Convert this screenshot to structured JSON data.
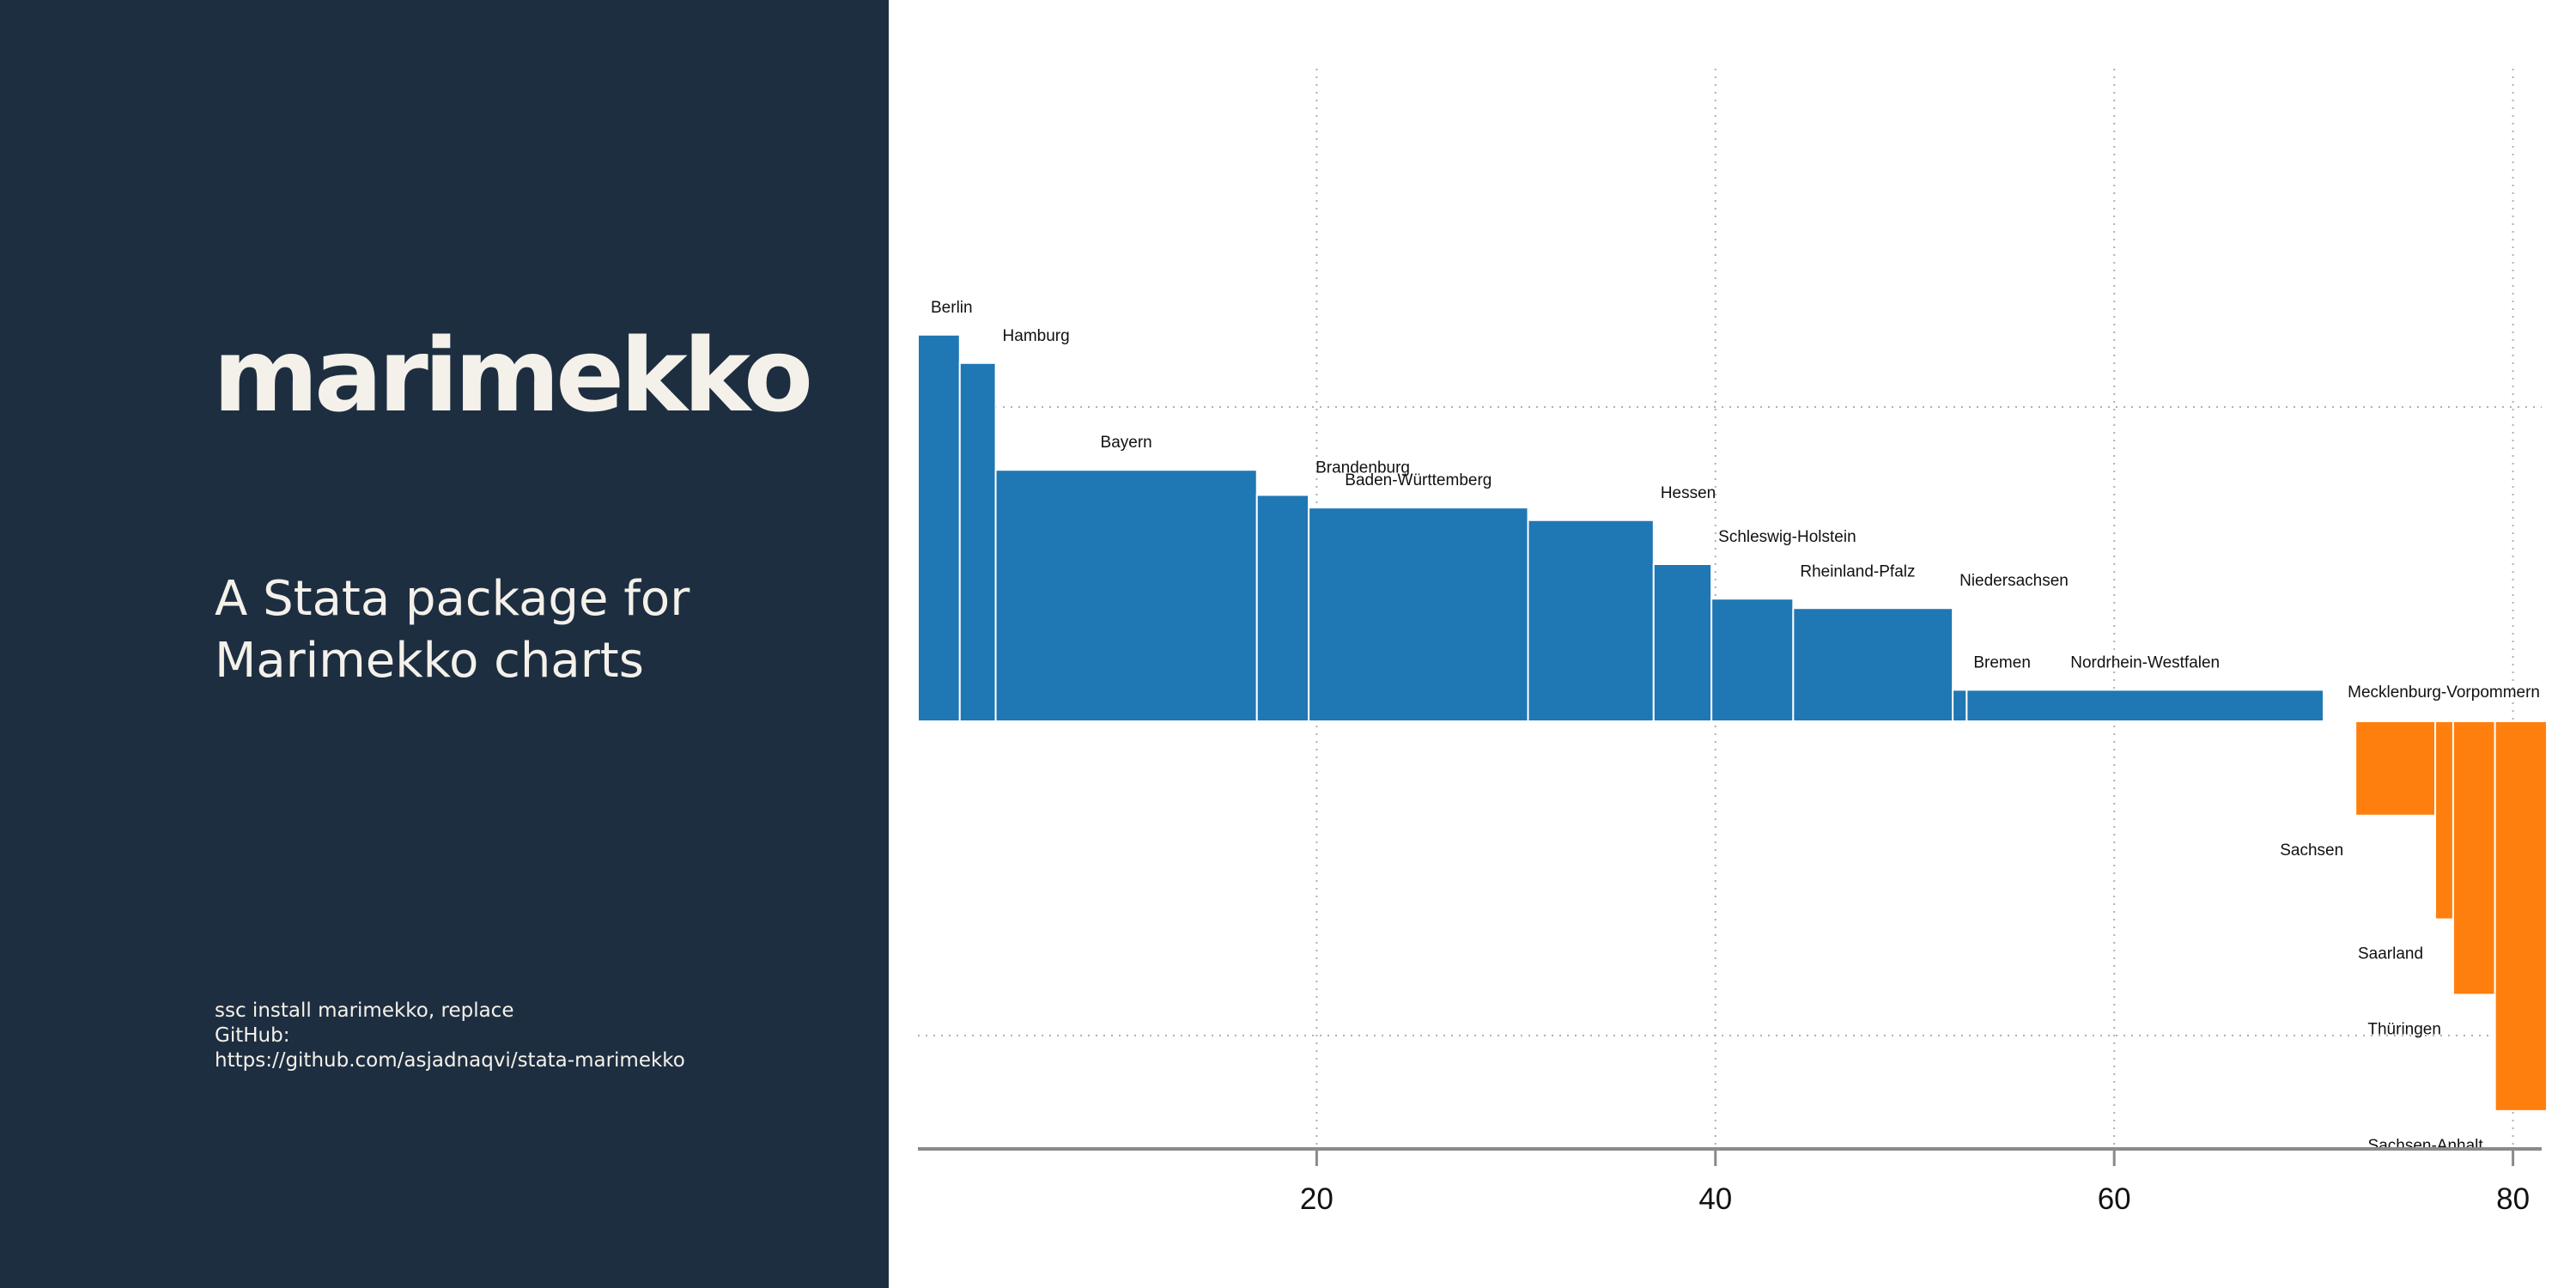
{
  "sidebar": {
    "title": "marimekko",
    "subtitle_lines": [
      "A Stata package for",
      "Marimekko charts"
    ],
    "install_line": "ssc install marimekko, replace",
    "github_label": "GitHub:",
    "github_url": "https://github.com/asjadnaqvi/stata-marimekko"
  },
  "colors": {
    "sidebar_bg": "#1e2e41",
    "positive": "#1f77b4",
    "negative": "#ff7f0e",
    "title_text": "#f4f1ea"
  },
  "chart_data": {
    "type": "bar",
    "variant": "marimekko (variable-width bars)",
    "title": "",
    "xlabel": "",
    "ylabel": "",
    "xlim": [
      0,
      83
    ],
    "ylim": [
      -2.2,
      2.1
    ],
    "x_ticks": [
      20,
      40,
      60,
      80
    ],
    "y_reference_lines": [
      1,
      -1
    ],
    "grid": "dotted gridlines at x ticks and y reference lines",
    "series": [
      {
        "name": "Berlin",
        "x0": 0.0,
        "x1": 2.1,
        "value": 1.23,
        "label_pos": "top-left"
      },
      {
        "name": "Hamburg",
        "x0": 2.1,
        "x1": 3.9,
        "value": 1.14,
        "label_pos": "top-right"
      },
      {
        "name": "Bayern",
        "x0": 3.9,
        "x1": 17.0,
        "value": 0.8,
        "label_pos": "top"
      },
      {
        "name": "Brandenburg",
        "x0": 17.0,
        "x1": 19.6,
        "value": 0.72,
        "label_pos": "top-right"
      },
      {
        "name": "Baden-Württemberg",
        "x0": 19.6,
        "x1": 30.6,
        "value": 0.68,
        "label_pos": "top"
      },
      {
        "name": "Hessen",
        "x0": 30.6,
        "x1": 36.9,
        "value": 0.64,
        "label_pos": "top-right"
      },
      {
        "name": "Schleswig-Holstein",
        "x0": 36.9,
        "x1": 39.8,
        "value": 0.5,
        "label_pos": "top-right"
      },
      {
        "name": "Rheinland-Pfalz",
        "x0": 39.8,
        "x1": 43.9,
        "value": 0.39,
        "label_pos": "top-right"
      },
      {
        "name": "Niedersachsen",
        "x0": 43.9,
        "x1": 51.9,
        "value": 0.36,
        "label_pos": "top-right"
      },
      {
        "name": "Bremen",
        "x0": 51.9,
        "x1": 52.6,
        "value": 0.1,
        "label_pos": "top-right"
      },
      {
        "name": "Nordrhein-Westfalen",
        "x0": 52.6,
        "x1": 70.5,
        "value": 0.1,
        "label_pos": "top"
      },
      {
        "name": "Mecklenburg-Vorpommern",
        "x0": 72.1,
        "x1": 74.1,
        "value": -0.3,
        "label_pos": "above-axis"
      },
      {
        "name": "Sachsen",
        "x0": 72.1,
        "x1": 76.1,
        "value": -0.3,
        "label_pos": "below-left"
      },
      {
        "name": "Saarland",
        "x0": 76.1,
        "x1": 77.0,
        "value": -0.63,
        "label_pos": "below-left"
      },
      {
        "name": "Thüringen",
        "x0": 77.0,
        "x1": 79.1,
        "value": -0.87,
        "label_pos": "below-left"
      },
      {
        "name": "Sachsen-Anhalt",
        "x0": 79.1,
        "x1": 81.7,
        "value": -1.24,
        "label_pos": "below-left"
      }
    ]
  }
}
